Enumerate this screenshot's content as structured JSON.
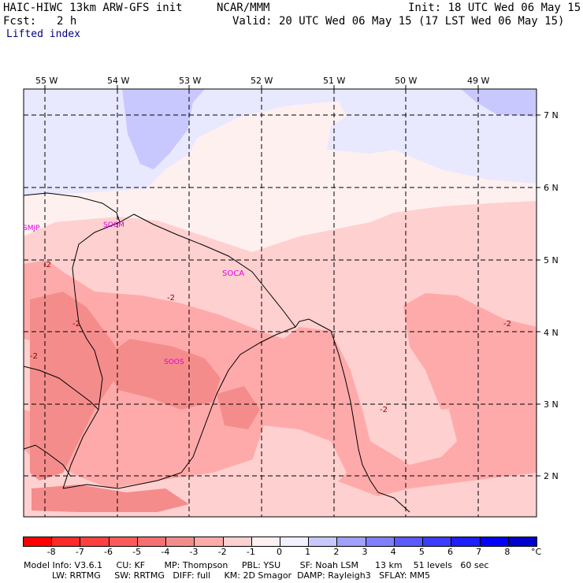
{
  "header": {
    "model": "HAIC-HIWC 13km ARW-GFS init",
    "org": "NCAR/MMM",
    "init": "Init: 18 UTC Wed 06 May 15",
    "fcst_label": "Fcst:",
    "fcst_value": "2 h",
    "valid": "Valid: 20 UTC Wed 06 May 15 (17 LST Wed 06 May 15)",
    "field": "Lifted index"
  },
  "map": {
    "longitude_labels": [
      "55 W",
      "54 W",
      "53 W",
      "52 W",
      "51 W",
      "50 W",
      "49 W"
    ],
    "latitude_labels": [
      "7 N",
      "6 N",
      "5 N",
      "4 N",
      "3 N",
      "2 N"
    ],
    "stations": [
      "SMJP",
      "SOCM",
      "SOCA",
      "SOOS"
    ],
    "contour_labels": [
      "-2",
      "-2",
      "-2",
      "-2",
      "-2",
      "-2"
    ],
    "colors": {
      "pos_1": "#e8e8ff",
      "pos_0": "#fff0f0",
      "neg_1": "#ffd0d0",
      "neg_2": "#ffaaaa",
      "neg_3": "#f58c8c",
      "station": "#e000e0",
      "contour_label": "#8b0000"
    }
  },
  "colorbar": {
    "labels": [
      "-8",
      "-7",
      "-6",
      "-5",
      "-4",
      "-3",
      "-2",
      "-1",
      "0",
      "1",
      "2",
      "3",
      "4",
      "5",
      "6",
      "7",
      "8"
    ],
    "unit": "°C",
    "colors": [
      "#ff0000",
      "#ff2a2a",
      "#ff4040",
      "#ff5a5a",
      "#f57070",
      "#f58c8c",
      "#ffaaaa",
      "#ffd0d0",
      "#fff0f0",
      "#f0f0ff",
      "#c8c8ff",
      "#a0a0ff",
      "#8080ff",
      "#5a5aff",
      "#3c3cff",
      "#1e1eff",
      "#0000ff",
      "#0000cc"
    ]
  },
  "footer": {
    "line1": "Model Info: V3.6.1     CU: KF       MP: Thompson     PBL: YSU       SF: Noah LSM      13 km    51 levels   60 sec",
    "line2": "LW: RRTMG     SW: RRTMG   DIFF: full     KM: 2D Smagor  DAMP: Rayleigh3   SFLAY: MM5"
  }
}
